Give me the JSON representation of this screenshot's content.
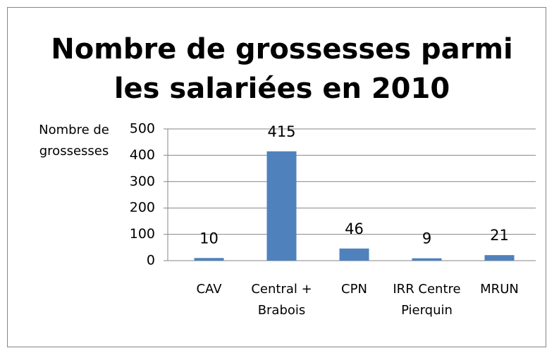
{
  "chart_data": {
    "type": "bar",
    "title": "Nombre de grossesses parmi les salariées en 2010",
    "y_label": "Nombre de grossesses",
    "categories": [
      "CAV",
      "Central + Brabois",
      "CPN",
      "IRR Centre Pierquin",
      "MRUN"
    ],
    "values": [
      10,
      415,
      46,
      9,
      21
    ],
    "color": "#4f81bd",
    "ylim": [
      0,
      500
    ],
    "yticks": [
      0,
      100,
      200,
      300,
      400,
      500
    ],
    "grid": true
  }
}
